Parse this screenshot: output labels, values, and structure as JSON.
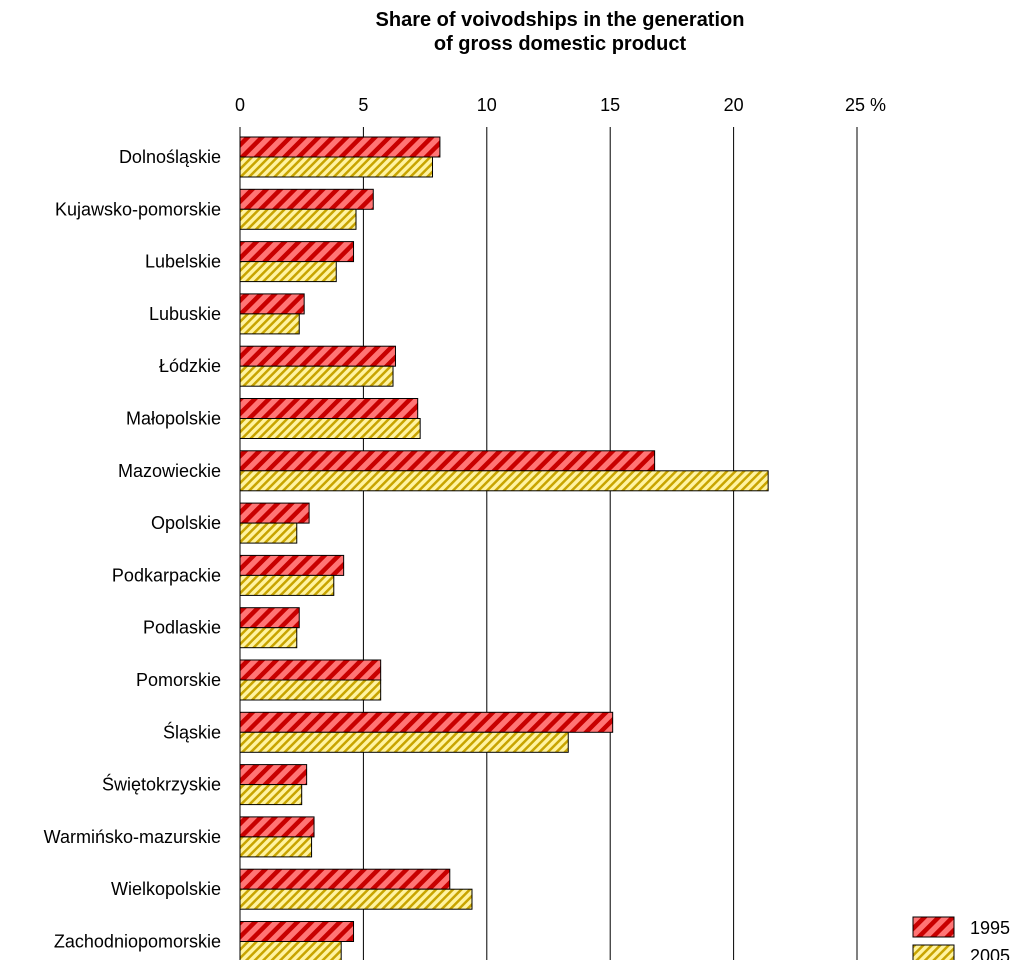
{
  "chart_data": {
    "type": "bar",
    "orientation": "horizontal",
    "title_lines": [
      "Share of voivodships in the generation",
      "of gross domestic product"
    ],
    "xlabel": "",
    "ylabel": "",
    "x_unit": "%",
    "xlim": [
      0,
      25
    ],
    "x_ticks": [
      0,
      5,
      10,
      15,
      20,
      25
    ],
    "x_tick_labels": [
      "0",
      "5",
      "10",
      "15",
      "20",
      "25 %"
    ],
    "x_axis_position": "top",
    "grid": true,
    "legend_position": "bottom-right",
    "categories": [
      "Dolnośląskie",
      "Kujawsko-pomorskie",
      "Lubelskie",
      "Lubuskie",
      "Łódzkie",
      "Małopolskie",
      "Mazowieckie",
      "Opolskie",
      "Podkarpackie",
      "Podlaskie",
      "Pomorskie",
      "Śląskie",
      "Świętokrzyskie",
      "Warmińsko-mazurskie",
      "Wielkopolskie",
      "Zachodniopomorskie"
    ],
    "series": [
      {
        "name": "1995",
        "color": "#ff5a5a",
        "pattern": "diagonal-hatch-red",
        "values": [
          8.1,
          5.4,
          4.6,
          2.6,
          6.3,
          7.2,
          16.8,
          2.8,
          4.2,
          2.4,
          5.7,
          15.1,
          2.7,
          3.0,
          8.5,
          4.6
        ]
      },
      {
        "name": "2005",
        "color": "#ffe070",
        "pattern": "diagonal-hatch-yellow",
        "values": [
          7.8,
          4.7,
          3.9,
          2.4,
          6.2,
          7.3,
          21.4,
          2.3,
          3.8,
          2.3,
          5.7,
          13.3,
          2.5,
          2.9,
          9.4,
          4.1
        ]
      }
    ]
  }
}
